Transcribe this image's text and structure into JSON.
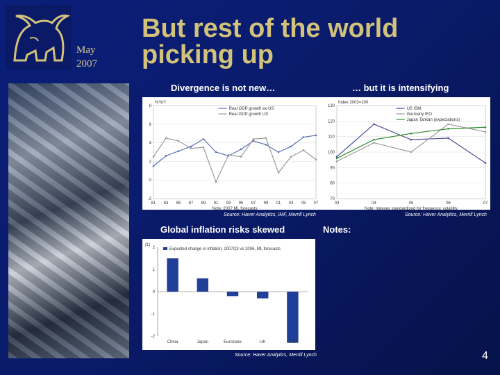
{
  "header": {
    "month": "May",
    "year": "2007",
    "title": "But rest of the world picking up"
  },
  "sections": {
    "divergence_title": "Divergence is not new…",
    "intensifying_title": "… but it is intensifying",
    "inflation_title": "Global inflation risks skewed",
    "notes_title": "Notes:"
  },
  "sources": {
    "chart1": "Source: Haver Analytics, IMF, Merrill Lynch",
    "chart2": "Source: Haver Analytics, Merrill Lynch",
    "chart3": "Source: Haver Analytics, Merrill Lynch"
  },
  "page_number": "4",
  "chart_data": [
    {
      "type": "line",
      "title": "",
      "ylabel": "%YoY",
      "note": "Note: 2007 ML forecasts",
      "x": [
        "81",
        "83",
        "85",
        "87",
        "89",
        "91",
        "93",
        "95",
        "97",
        "99",
        "01",
        "03",
        "05",
        "07"
      ],
      "ylim": [
        -2,
        8
      ],
      "yticks": [
        -2,
        0,
        2,
        4,
        6,
        8
      ],
      "series": [
        {
          "name": "Real GDP growth ex-US",
          "color": "#5a6fb8",
          "values": [
            1.5,
            2.6,
            3.1,
            3.6,
            4.4,
            3.0,
            2.6,
            3.3,
            4.2,
            3.8,
            3.0,
            3.6,
            4.6,
            4.8
          ]
        },
        {
          "name": "Real GDP growth US",
          "color": "#9a9a9a",
          "values": [
            2.5,
            4.5,
            4.2,
            3.4,
            3.5,
            -0.2,
            2.7,
            2.5,
            4.4,
            4.5,
            0.8,
            2.5,
            3.2,
            2.2
          ]
        }
      ]
    },
    {
      "type": "line",
      "title": "",
      "ylabel": "Index 2003=100",
      "note": "Note: Indexes standardized for frequency, volatility",
      "x": [
        "03",
        "04",
        "05",
        "06",
        "07"
      ],
      "ylim": [
        70,
        130
      ],
      "yticks": [
        70,
        80,
        90,
        100,
        110,
        120,
        130
      ],
      "series": [
        {
          "name": "US ISM",
          "color": "#4a4a9a",
          "values": [
            97,
            118,
            108,
            109,
            93
          ]
        },
        {
          "name": "Germany IFO",
          "color": "#9a9a9a",
          "values": [
            94,
            106,
            100,
            118,
            113
          ]
        },
        {
          "name": "Japan Tankan (expectations)",
          "color": "#2e8b2e",
          "values": [
            96,
            108,
            112,
            115,
            116
          ]
        }
      ]
    },
    {
      "type": "bar",
      "title": "",
      "ylabel": "(1)",
      "legend": "Expected change in inflation, 2007Q3 vs 2006, ML forecasts",
      "categories": [
        "China",
        "Japan",
        "Eurozone",
        "UK",
        "US"
      ],
      "values": [
        1.5,
        0.6,
        -0.2,
        -0.3,
        -2.3
      ],
      "ylim": [
        -2,
        2
      ],
      "yticks": [
        2,
        1,
        0,
        -1,
        -2
      ],
      "color": "#1f3f99"
    }
  ]
}
